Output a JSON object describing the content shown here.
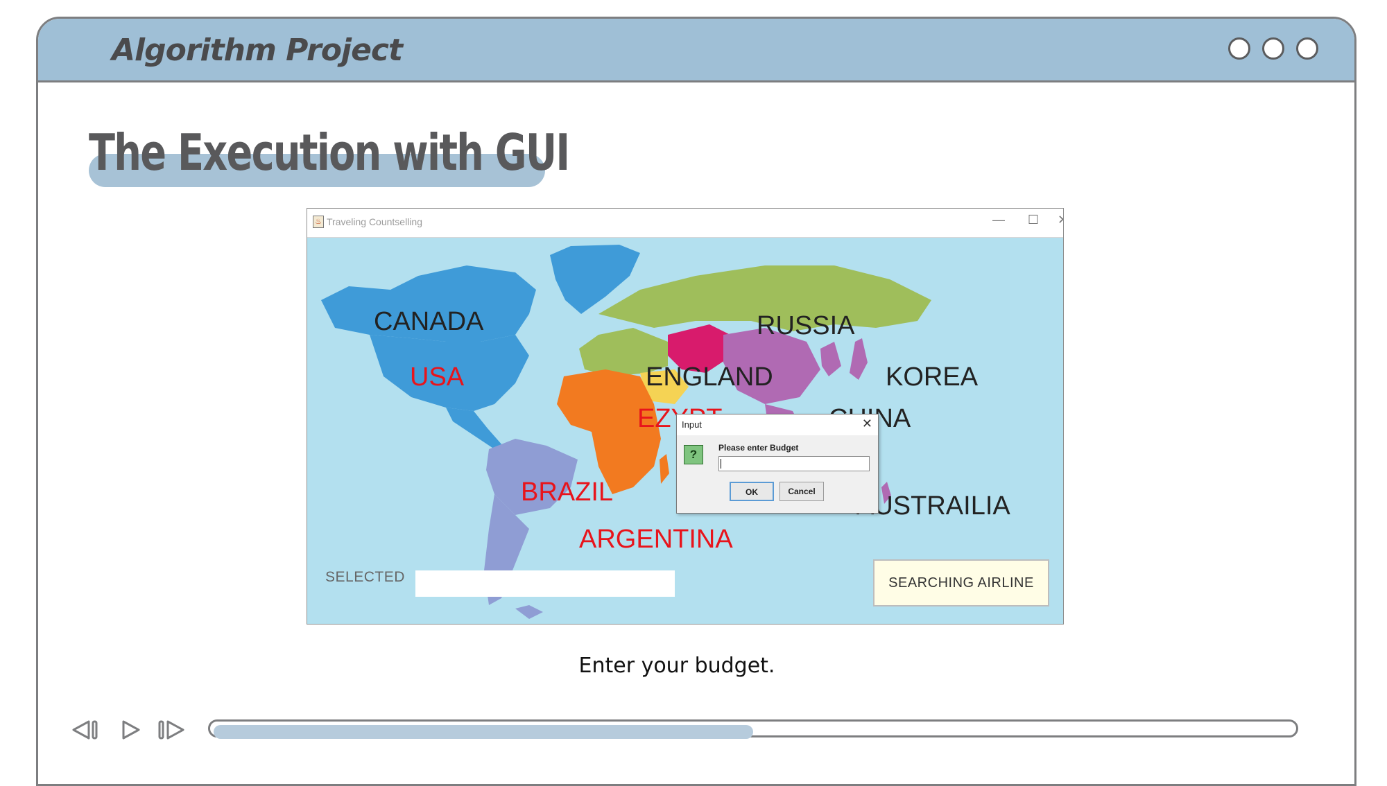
{
  "header": {
    "title": "Algorithm Project"
  },
  "slide": {
    "heading": "The Execution with GUI",
    "caption": "Enter your budget."
  },
  "app_window": {
    "title": "Traveling Countselling",
    "controls": {
      "minimize": "—",
      "maximize": "☐",
      "close": "✕"
    }
  },
  "map": {
    "countries": [
      {
        "name": "CANADA",
        "color": "#222222"
      },
      {
        "name": "USA",
        "color": "#e8141b"
      },
      {
        "name": "RUSSIA",
        "color": "#222222"
      },
      {
        "name": "ENGLAND",
        "color": "#222222"
      },
      {
        "name": "KOREA",
        "color": "#222222"
      },
      {
        "name": "EZYPT",
        "color": "#e8141b"
      },
      {
        "name": "CHINA",
        "color": "#222222"
      },
      {
        "name": "BRAZIL",
        "color": "#e8141b"
      },
      {
        "name": "ARGENTINA",
        "color": "#e8141b"
      },
      {
        "name": "AUSTRAILIA",
        "color": "#222222"
      }
    ]
  },
  "selected": {
    "label": "SELECTED",
    "value": ""
  },
  "search_button": {
    "label": "SEARCHING AIRLINE"
  },
  "dialog": {
    "title": "Input",
    "close": "✕",
    "icon": "question-icon",
    "icon_glyph": "?",
    "prompt": "Please enter Budget",
    "value": "",
    "ok_label": "OK",
    "cancel_label": "Cancel"
  },
  "player": {
    "progress": 0.5
  },
  "colors": {
    "header": "#9fbfd6",
    "accent": "#a7c2d6",
    "frame": "#7d7e80",
    "ocean": "#b3e0ef"
  }
}
